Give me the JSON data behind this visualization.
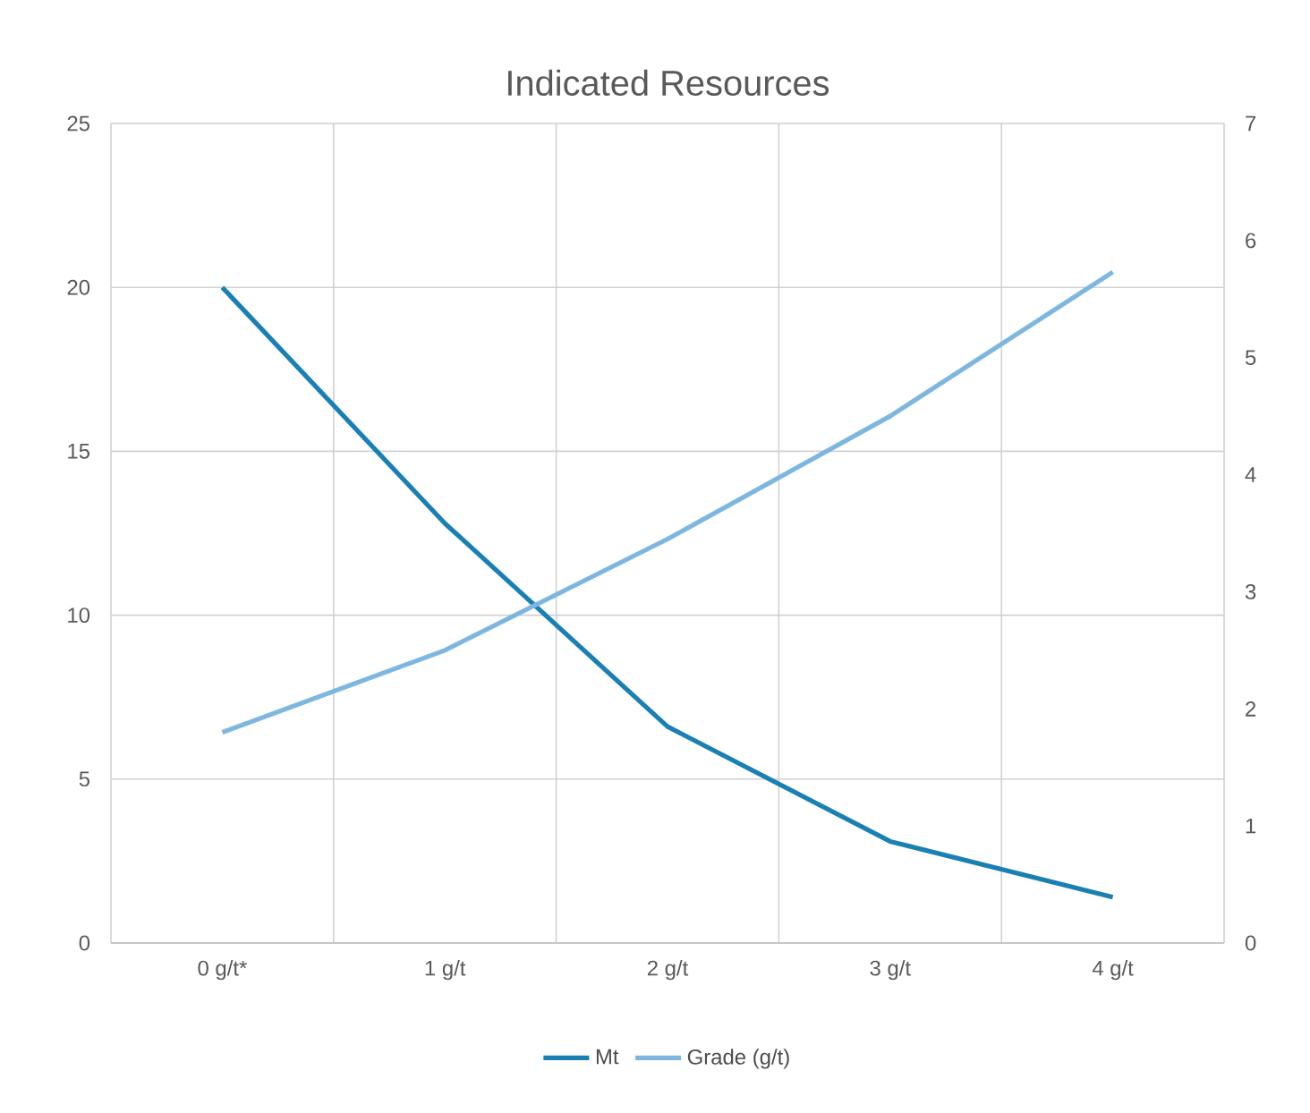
{
  "chart_data": {
    "type": "line",
    "title": "Indicated Resources",
    "categories": [
      "0 g/t*",
      "1 g/t",
      "2 g/t",
      "3 g/t",
      "4 g/t"
    ],
    "series": [
      {
        "name": "Mt",
        "color": "#1a80b3",
        "values": [
          20,
          12.8,
          6.6,
          3.1,
          1.4
        ]
      },
      {
        "name": "Grade (g/t)",
        "color": "#7db7e0",
        "axis": "y2",
        "values": [
          1.8,
          2.5,
          3.45,
          4.5,
          5.73
        ]
      }
    ],
    "ylim": [
      0,
      25
    ],
    "yticks": [
      0,
      5,
      10,
      15,
      20,
      25
    ],
    "y2lim": [
      0,
      7
    ],
    "y2ticks": [
      0,
      1,
      2,
      3,
      4,
      5,
      6,
      7
    ],
    "grid": true,
    "legend": "bottom",
    "marker": "none",
    "line_style": "solid"
  }
}
